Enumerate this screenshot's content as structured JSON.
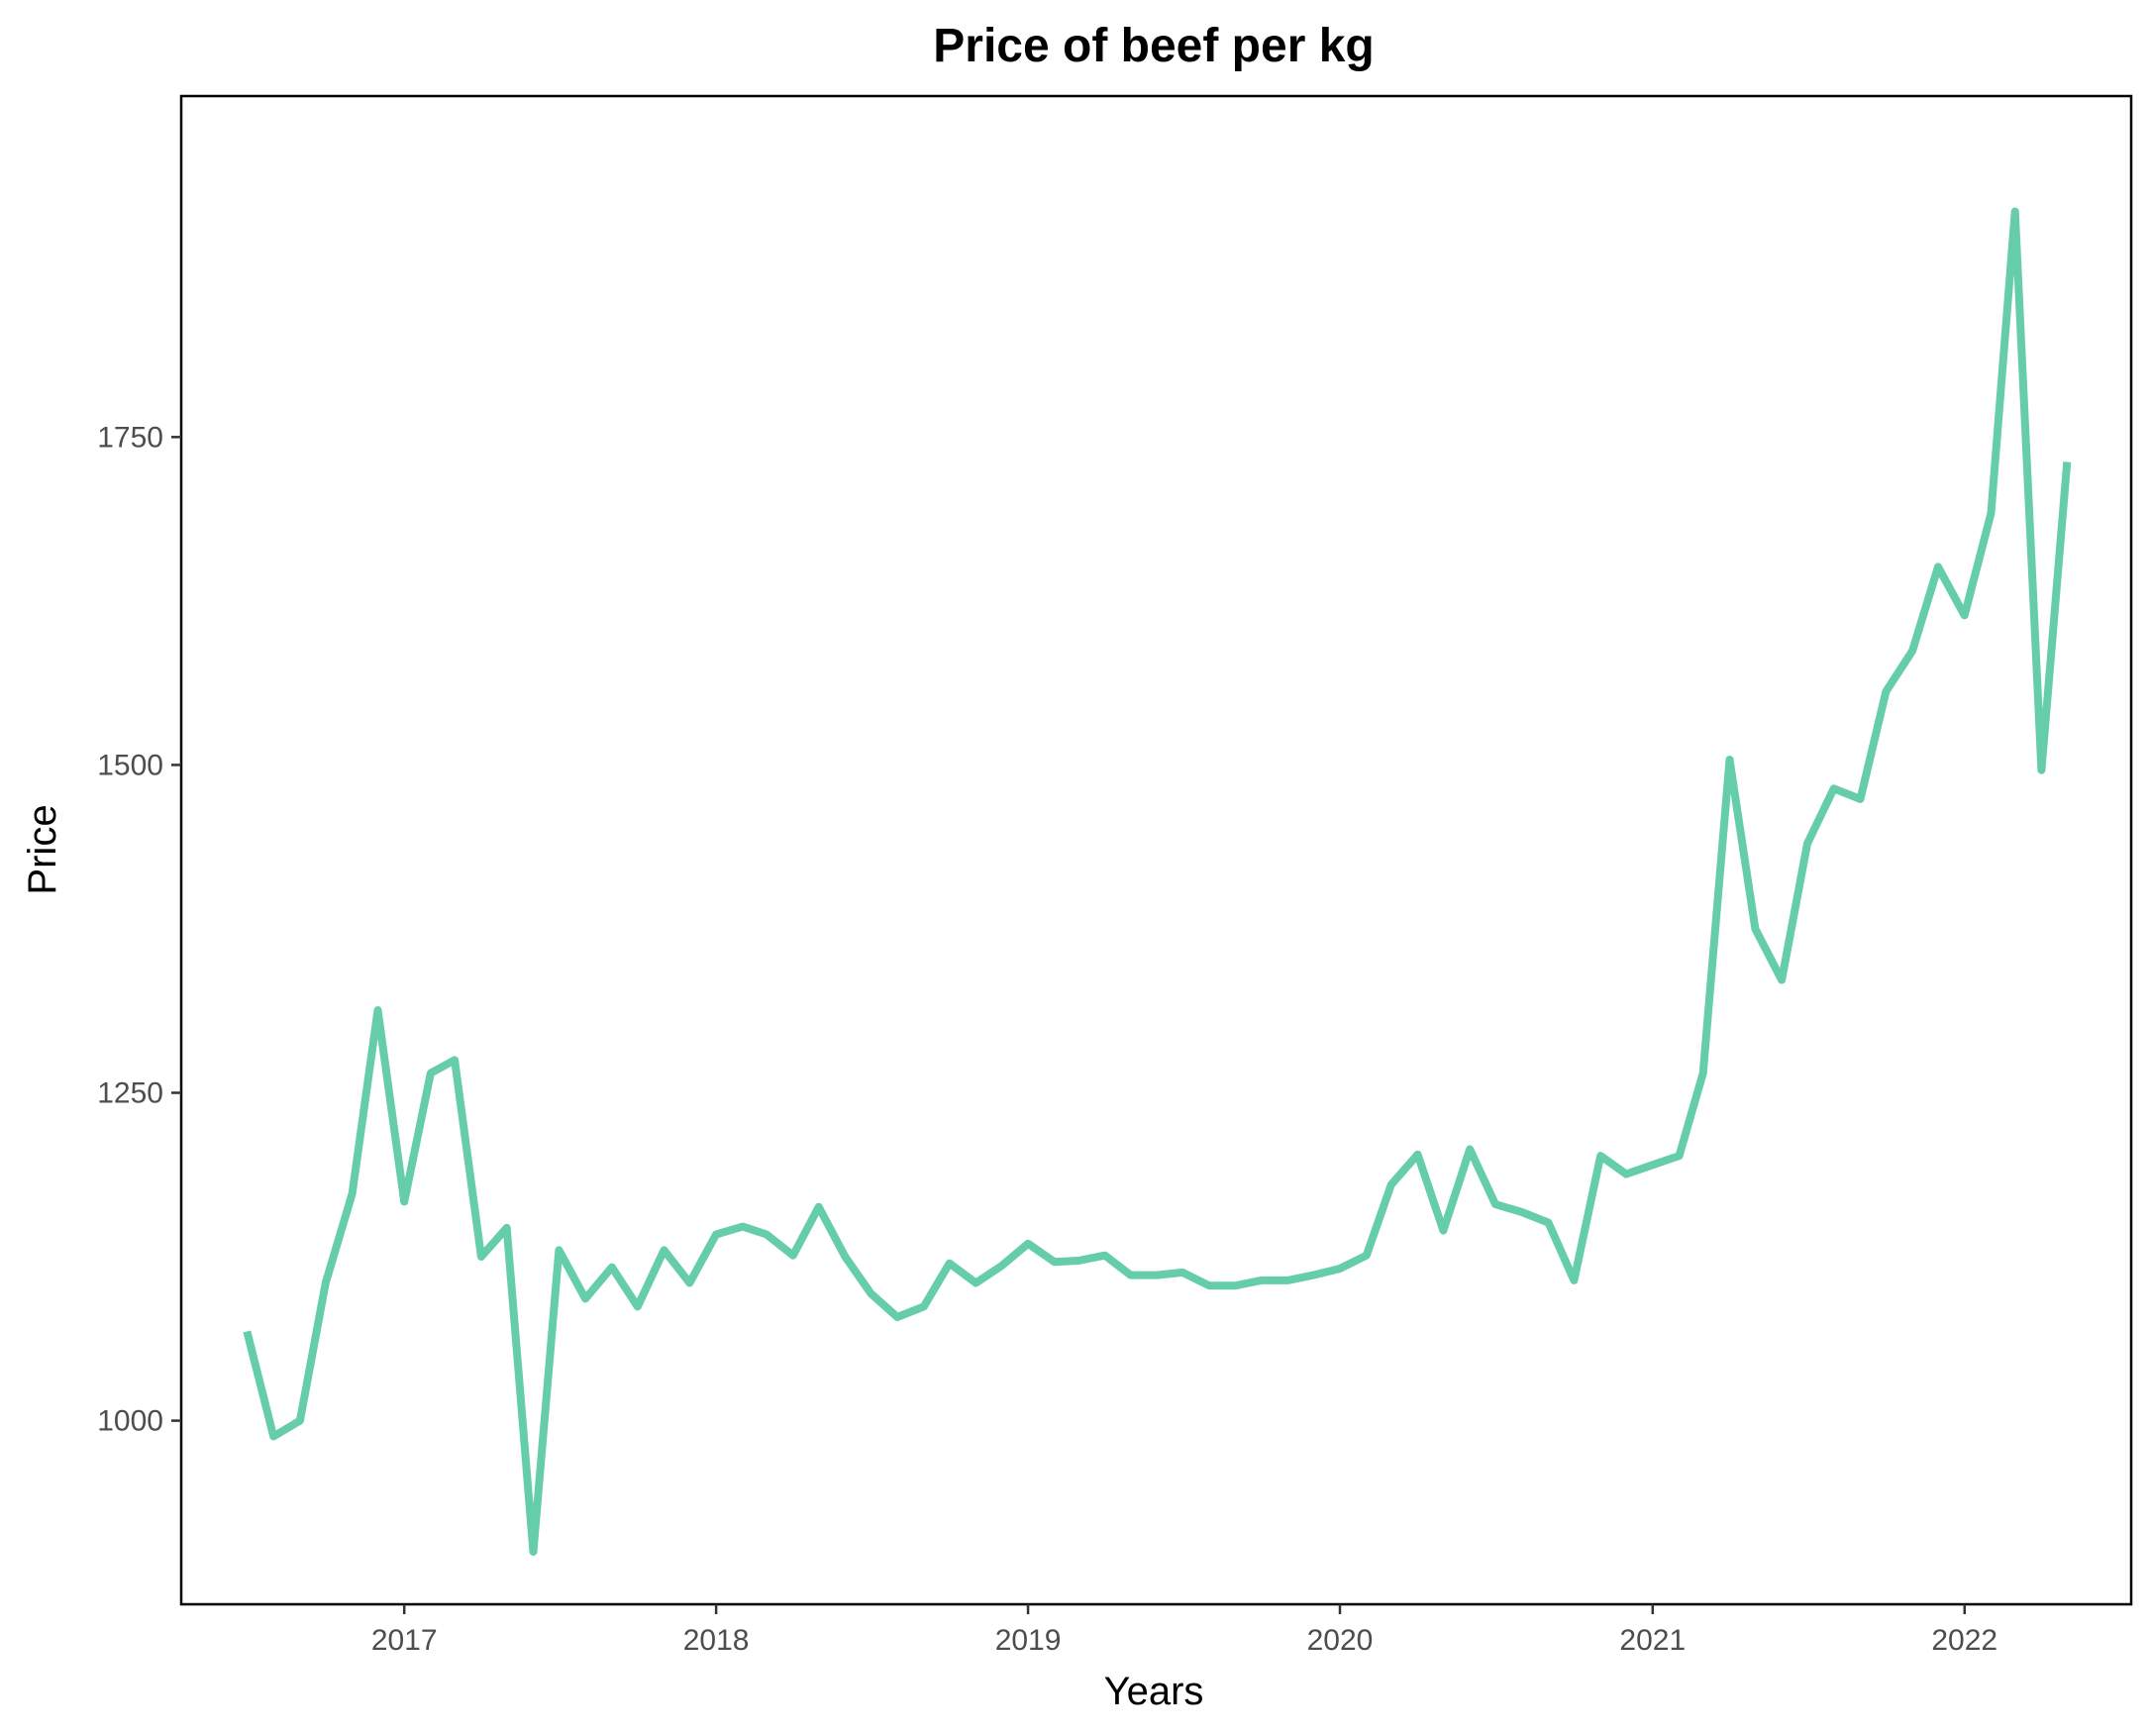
{
  "chart_data": {
    "type": "line",
    "title": "Price of beef per kg",
    "xlabel": "Years",
    "ylabel": "Price",
    "xlim": [
      "2016-04-15",
      "2022-07-15"
    ],
    "ylim": [
      860,
      2010
    ],
    "grid": false,
    "legend": "none",
    "color": "#66cdaa",
    "x_ticks": [
      "2017-01-01",
      "2018-01-01",
      "2019-01-01",
      "2020-01-01",
      "2021-01-01",
      "2022-01-01"
    ],
    "x_tick_labels": [
      "2017",
      "2018",
      "2019",
      "2020",
      "2021",
      "2022"
    ],
    "y_ticks": [
      1000,
      1250,
      1500,
      1750
    ],
    "y_tick_labels": [
      "1000",
      "1250",
      "1500",
      "1750"
    ],
    "x": [
      "2016-07-01",
      "2016-08-01",
      "2016-09-01",
      "2016-10-01",
      "2016-11-01",
      "2016-12-01",
      "2017-01-01",
      "2017-02-01",
      "2017-03-01",
      "2017-04-01",
      "2017-05-01",
      "2017-06-01",
      "2017-07-01",
      "2017-08-01",
      "2017-09-01",
      "2017-10-01",
      "2017-11-01",
      "2017-12-01",
      "2018-01-01",
      "2018-02-01",
      "2018-03-01",
      "2018-04-01",
      "2018-05-01",
      "2018-06-01",
      "2018-07-01",
      "2018-08-01",
      "2018-09-01",
      "2018-10-01",
      "2018-11-01",
      "2018-12-01",
      "2019-01-01",
      "2019-02-01",
      "2019-03-01",
      "2019-04-01",
      "2019-05-01",
      "2019-06-01",
      "2019-07-01",
      "2019-08-01",
      "2019-09-01",
      "2019-10-01",
      "2019-11-01",
      "2019-12-01",
      "2020-01-01",
      "2020-02-01",
      "2020-03-01",
      "2020-04-01",
      "2020-05-01",
      "2020-06-01",
      "2020-07-01",
      "2020-08-01",
      "2020-09-01",
      "2020-10-01",
      "2020-11-01",
      "2020-12-01",
      "2021-01-01",
      "2021-02-01",
      "2021-03-01",
      "2021-04-01",
      "2021-05-01",
      "2021-06-01",
      "2021-07-01",
      "2021-08-01",
      "2021-09-01",
      "2021-10-01",
      "2021-11-01",
      "2021-12-01",
      "2022-01-01",
      "2022-02-01",
      "2022-03-01",
      "2022-04-01",
      "2022-05-01"
    ],
    "series": [
      {
        "values": [
          1068,
          988,
          1000,
          1105,
          1173,
          1313,
          1167,
          1265,
          1275,
          1125,
          1147,
          900,
          1130,
          1093,
          1117,
          1087,
          1130,
          1105,
          1142,
          1148,
          1142,
          1126,
          1163,
          1125,
          1097,
          1079,
          1087,
          1120,
          1105,
          1118,
          1135,
          1121,
          1122,
          1126,
          1111,
          1111,
          1113,
          1103,
          1103,
          1107,
          1107,
          1111,
          1116,
          1126,
          1180,
          1203,
          1145,
          1207,
          1165,
          1159,
          1151,
          1107,
          1202,
          1188,
          1195,
          1202,
          1265,
          1504,
          1375,
          1336,
          1440,
          1482,
          1474,
          1556,
          1587,
          1651,
          1614,
          1692,
          1922,
          1496,
          1731
        ]
      }
    ]
  }
}
